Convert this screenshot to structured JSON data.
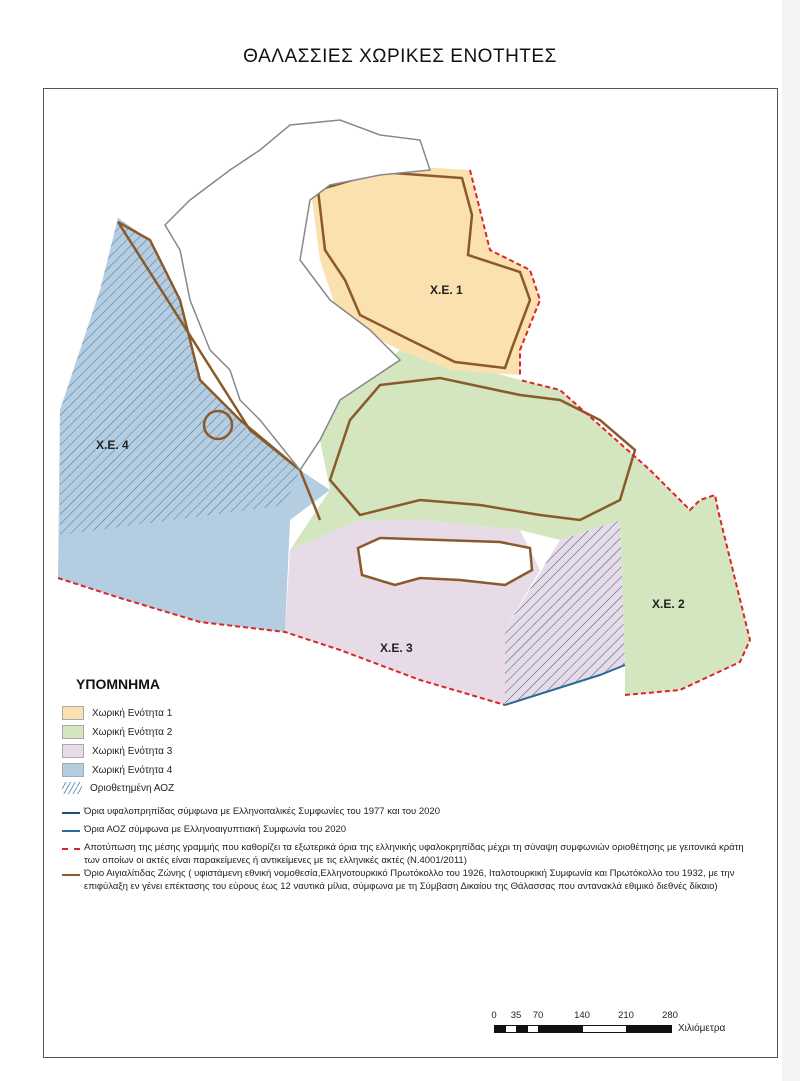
{
  "title": "ΘΑΛΑΣΣΙΕΣ ΧΩΡΙΚΕΣ ΕΝΟΤΗΤΕΣ",
  "map": {
    "zone_labels": [
      "Χ.Ε. 1",
      "Χ.Ε. 2",
      "Χ.Ε. 3",
      "Χ.Ε. 4"
    ],
    "colors": {
      "ze1": "#fbe0b0",
      "ze2": "#d3e6c0",
      "ze3": "#e6dbe6",
      "ze4": "#b4cde0",
      "aiz_hatch": "#2f5d8a",
      "coastal_zone": "#8b5a2b",
      "median_line": "#d9262a",
      "land_border": "#888888"
    }
  },
  "legend": {
    "title": "ΥΠΟΜΝΗΜΑ",
    "areas": [
      {
        "label": "Χωρική Ενότητα 1",
        "color": "#fbe0b0"
      },
      {
        "label": "Χωρική Ενότητα 2",
        "color": "#d3e6c0"
      },
      {
        "label": "Χωρική Ενότητα 3",
        "color": "#e6dbe6"
      },
      {
        "label": "Χωρική Ενότητα 4",
        "color": "#b4cde0"
      }
    ],
    "hatch_label": "Οριοθετημένη ΑΟΖ",
    "lines": [
      {
        "label": "Όρια υφαλοπρηπίδας σύμφωνα με Ελληνοιταλικές Συμφωνίες του 1977 και του 2020",
        "color": "#1f4e79",
        "style": "solid"
      },
      {
        "label": "Όρια ΑΟΖ σύμφωνα με Ελληνοαιγυπτιακή Συμφωνία του 2020",
        "color": "#2b6a99",
        "style": "solid"
      },
      {
        "label": "Αποτύπωση της μέσης γραμμής που καθορίζει τα εξωτερικά όρια της ελληνικής υφαλοκρηπίδας μέχρι τη σύναψη συμφωνιών οριοθέτησης με γειτονικά κράτη των οποίων οι ακτές είναι παρακείμενες ή αντικείμενες με τις ελληνικές ακτές (Ν.4001/2011)",
        "color": "#d9262a",
        "style": "dashed"
      },
      {
        "label": "Όριο Αιγιαλίτιδας Ζώνης ( υφιστάμενη εθνική νομοθεσία,Ελληνοτουρκικό Πρωτόκολλο του 1926, Ιταλοτουρκική Συμφωνία και Πρωτόκολλο του 1932, με την επιφύλαξη εν γένει επέκτασης του εύρους έως 12 ναυτικά μίλια, σύμφωνα με τη Σύμβαση Δικαίου της Θάλασσας που αντανακλά εθιμικό διεθνές δίκαιο)",
        "color": "#8b5a2b",
        "style": "solid"
      }
    ]
  },
  "scale": {
    "ticks": [
      "0",
      "35",
      "70",
      "140",
      "210",
      "280"
    ],
    "unit": "Χιλιόμετρα"
  }
}
